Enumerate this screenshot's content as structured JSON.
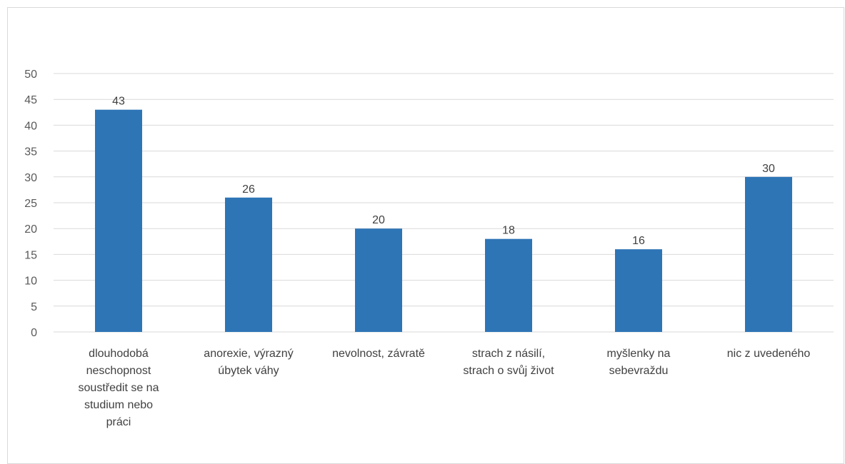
{
  "chart_data": {
    "type": "bar",
    "categories": [
      [
        "dlouhodobá",
        "neschopnost",
        "soustředit se na",
        "studium nebo",
        "práci"
      ],
      [
        "anorexie, výrazný",
        "úbytek váhy"
      ],
      [
        "nevolnost, závratě"
      ],
      [
        "strach z násilí,",
        "strach o svůj život"
      ],
      [
        "myšlenky na",
        "sebevraždu"
      ],
      [
        "nic z uvedeného"
      ]
    ],
    "values": [
      43,
      26,
      20,
      18,
      16,
      30
    ],
    "data_labels": [
      "43",
      "26",
      "20",
      "18",
      "16",
      "30"
    ],
    "ylim": [
      0,
      50
    ],
    "yticks": [
      "0",
      "5",
      "10",
      "15",
      "20",
      "25",
      "30",
      "35",
      "40",
      "45",
      "50"
    ],
    "grid": true,
    "legend": "none",
    "bar_color": "#2e75b6",
    "grid_color": "#d9d9d9"
  }
}
